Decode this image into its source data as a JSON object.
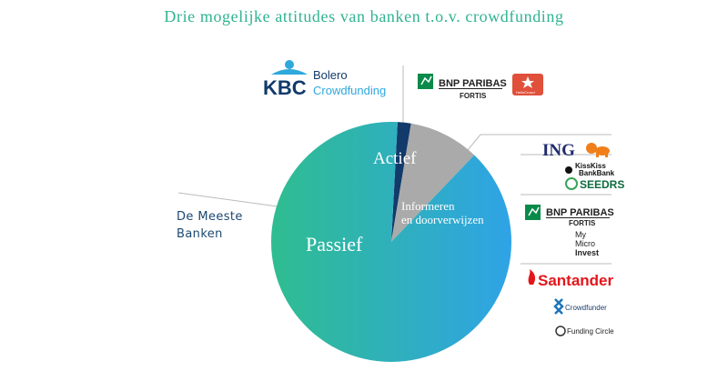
{
  "title": "Drie mogelijke attitudes van banken t.o.v. crowdfunding",
  "colors": {
    "title": "#2fb391",
    "actief_slice": "#aaaaaa",
    "kbc_slice": "#123a6b",
    "passief_gradient_start": "#2fbd90",
    "passief_gradient_end": "#2fa3e6",
    "leader": "#bbbbbb",
    "meeste_text": "#1a4870"
  },
  "chart_data": {
    "type": "pie",
    "title": "Drie mogelijke attitudes van banken t.o.v. crowdfunding",
    "slices": [
      {
        "label": "Passief",
        "value": 88.7,
        "color": "#2fb0b8"
      },
      {
        "label": "",
        "value": 1.8,
        "color": "#123a6b"
      },
      {
        "label": "Actief",
        "value": 9.5,
        "color": "#aaaaaa"
      }
    ],
    "annotations": [
      "Informeren en doorverwijzen",
      "De Meeste Banken"
    ]
  },
  "labels": {
    "passief": "Passief",
    "actief": "Actief",
    "informeren_line1": "Informeren",
    "informeren_line2": "en doorverwijzen",
    "meeste_line1": "De Meeste",
    "meeste_line2": "Banken"
  },
  "logos": {
    "kbc": {
      "brand": "KBC",
      "line1": "Bolero",
      "line2": "Crowdfunding",
      "brand_color": "#123a6b",
      "accent_color": "#2fa8dc"
    },
    "bnp_top": {
      "line1": "BNP PARIBAS",
      "line2": "FORTIS",
      "accent_color": "#0a8a4a"
    },
    "hello": {
      "text": "HelloCrowd",
      "color": "#e0503a"
    },
    "ing": {
      "text": "ING",
      "color": "#1f2b6b",
      "lion_color": "#f07f1a"
    },
    "kisskiss": {
      "line1": "KissKiss",
      "line2": "BankBank"
    },
    "seedrs": {
      "text": "SEEDRS",
      "color": "#0d6b3d"
    },
    "bnp_mid": {
      "line1": "BNP PARIBAS",
      "line2": "FORTIS",
      "accent_color": "#0a8a4a"
    },
    "mymicro": {
      "line1": "My",
      "line2": "Micro",
      "line3": "Invest"
    },
    "santander": {
      "text": "Santander",
      "color": "#e3161b"
    },
    "crowdfunder": {
      "text": "Crowdfunder",
      "color": "#1d75b9"
    },
    "fundingcircle": {
      "text": "Funding Circle"
    }
  }
}
